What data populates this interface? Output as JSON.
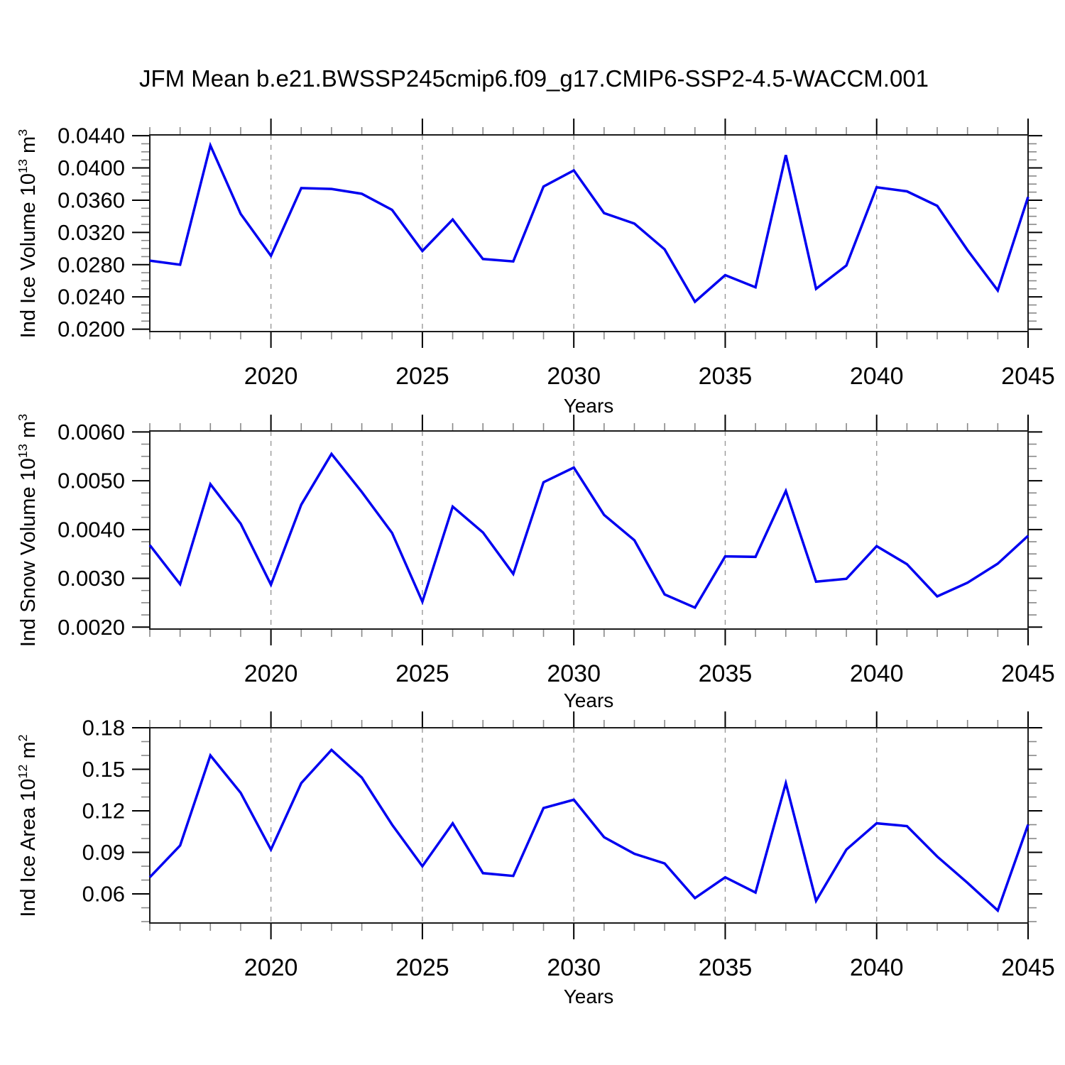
{
  "title": "JFM Mean b.e21.BWSSP245cmip6.f09_g17.CMIP6-SSP2-4.5-WACCM.001",
  "colors": {
    "line": "#0000F0",
    "grid": "#999999",
    "frame": "#1C1C1C",
    "tick_major": "#000000",
    "tick_minor": "#888888",
    "text": "#000000",
    "background": "#FFFFFF"
  },
  "chart_data": [
    {
      "type": "line",
      "name": "ind-ice-volume",
      "ylabel_plain": "Ind Ice Volume 10^13 m^3",
      "ylabel_parts": [
        "Ind Ice Volume 10",
        "13",
        " m",
        "3"
      ],
      "xlabel": "Years",
      "legend": "none",
      "grid": "vertical-dashed-at-major-x",
      "x": [
        2016,
        2017,
        2018,
        2019,
        2020,
        2021,
        2022,
        2023,
        2024,
        2025,
        2026,
        2027,
        2028,
        2029,
        2030,
        2031,
        2032,
        2033,
        2034,
        2035,
        2036,
        2037,
        2038,
        2039,
        2040,
        2041,
        2042,
        2043,
        2044,
        2045
      ],
      "values": [
        0.0285,
        0.028,
        0.0428,
        0.0343,
        0.0291,
        0.0375,
        0.0374,
        0.0368,
        0.0348,
        0.0297,
        0.0336,
        0.0287,
        0.0284,
        0.0377,
        0.0397,
        0.0344,
        0.0331,
        0.0299,
        0.0234,
        0.0267,
        0.0252,
        0.0416,
        0.025,
        0.0279,
        0.0376,
        0.0371,
        0.0353,
        0.0298,
        0.0248,
        0.0364
      ],
      "xlim": [
        2016,
        2045
      ],
      "ylim": [
        0.0197,
        0.0441
      ],
      "yticks": {
        "values": [
          0.044,
          0.04,
          0.036,
          0.032,
          0.028,
          0.024,
          0.02
        ],
        "labels": [
          "0.0440",
          "0.0400",
          "0.0360",
          "0.0320",
          "0.0280",
          "0.0240",
          "0.0200"
        ],
        "minor_step": 0.001,
        "minor_range": [
          0.02,
          0.044
        ]
      },
      "xticks": {
        "values": [
          2020,
          2025,
          2030,
          2035,
          2040,
          2045
        ],
        "labels": [
          "2020",
          "2025",
          "2030",
          "2035",
          "2040",
          "2045"
        ],
        "minor_step": 1,
        "grid_values": [
          2020,
          2025,
          2030,
          2035,
          2040
        ]
      }
    },
    {
      "type": "line",
      "name": "ind-snow-volume",
      "ylabel_plain": "Ind Snow Volume 10^13 m^3",
      "ylabel_parts": [
        "Ind Snow Volume 10",
        "13",
        " m",
        "3"
      ],
      "xlabel": "Years",
      "legend": "none",
      "grid": "vertical-dashed-at-major-x",
      "x": [
        2016,
        2017,
        2018,
        2019,
        2020,
        2021,
        2022,
        2023,
        2024,
        2025,
        2026,
        2027,
        2028,
        2029,
        2030,
        2031,
        2032,
        2033,
        2034,
        2035,
        2036,
        2037,
        2038,
        2039,
        2040,
        2041,
        2042,
        2043,
        2044,
        2045
      ],
      "values": [
        0.00368,
        0.00288,
        0.00493,
        0.00412,
        0.00287,
        0.00451,
        0.00555,
        0.00477,
        0.00393,
        0.00252,
        0.00447,
        0.00394,
        0.00309,
        0.00497,
        0.00527,
        0.0043,
        0.00378,
        0.00267,
        0.0024,
        0.00345,
        0.00344,
        0.00479,
        0.00293,
        0.00299,
        0.00366,
        0.00329,
        0.00263,
        0.00291,
        0.0033,
        0.00387
      ],
      "xlim": [
        2016,
        2045
      ],
      "ylim": [
        0.00196,
        0.00602
      ],
      "yticks": {
        "values": [
          0.006,
          0.005,
          0.004,
          0.003,
          0.002
        ],
        "labels": [
          "0.0060",
          "0.0050",
          "0.0040",
          "0.0030",
          "0.0020"
        ],
        "minor_step": 0.00025,
        "minor_range": [
          0.002,
          0.006
        ]
      },
      "xticks": {
        "values": [
          2020,
          2025,
          2030,
          2035,
          2040,
          2045
        ],
        "labels": [
          "2020",
          "2025",
          "2030",
          "2035",
          "2040",
          "2045"
        ],
        "minor_step": 1,
        "grid_values": [
          2020,
          2025,
          2030,
          2035,
          2040
        ]
      }
    },
    {
      "type": "line",
      "name": "ind-ice-area",
      "ylabel_plain": "Ind Ice Area 10^12 m^2",
      "ylabel_parts": [
        "Ind Ice Area 10",
        "12",
        " m",
        "2"
      ],
      "xlabel": "Years",
      "legend": "none",
      "grid": "vertical-dashed-at-major-x",
      "x": [
        2016,
        2017,
        2018,
        2019,
        2020,
        2021,
        2022,
        2023,
        2024,
        2025,
        2026,
        2027,
        2028,
        2029,
        2030,
        2031,
        2032,
        2033,
        2034,
        2035,
        2036,
        2037,
        2038,
        2039,
        2040,
        2041,
        2042,
        2043,
        2044,
        2045
      ],
      "values": [
        0.072,
        0.095,
        0.16,
        0.133,
        0.092,
        0.14,
        0.164,
        0.144,
        0.11,
        0.08,
        0.111,
        0.075,
        0.073,
        0.122,
        0.128,
        0.101,
        0.089,
        0.082,
        0.057,
        0.072,
        0.061,
        0.14,
        0.055,
        0.092,
        0.111,
        0.109,
        0.087,
        0.068,
        0.048,
        0.11
      ],
      "xlim": [
        2016,
        2045
      ],
      "ylim": [
        0.039,
        0.18
      ],
      "yticks": {
        "values": [
          0.18,
          0.15,
          0.12,
          0.09,
          0.06
        ],
        "labels": [
          "0.18",
          "0.15",
          "0.12",
          "0.09",
          "0.06"
        ],
        "minor_step": 0.01,
        "minor_range": [
          0.04,
          0.18
        ]
      },
      "xticks": {
        "values": [
          2020,
          2025,
          2030,
          2035,
          2040,
          2045
        ],
        "labels": [
          "2020",
          "2025",
          "2030",
          "2035",
          "2040",
          "2045"
        ],
        "minor_step": 1,
        "grid_values": [
          2020,
          2025,
          2030,
          2035,
          2040
        ]
      }
    }
  ]
}
